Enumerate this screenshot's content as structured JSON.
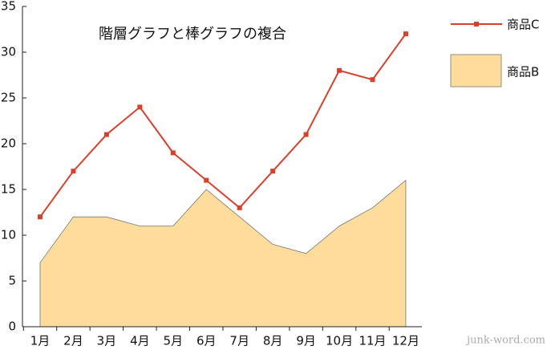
{
  "chart_data": {
    "type": "combo",
    "title": "階層グラフと棒グラフの複合",
    "categories": [
      "1月",
      "2月",
      "3月",
      "4月",
      "5月",
      "6月",
      "7月",
      "8月",
      "9月",
      "10月",
      "11月",
      "12月"
    ],
    "series": [
      {
        "name": "商品C",
        "type": "line",
        "color": "#d8402a",
        "values": [
          12,
          17,
          21,
          24,
          19,
          16,
          13,
          17,
          21,
          28,
          27,
          32
        ]
      },
      {
        "name": "商品B",
        "type": "area",
        "color": "#fedc9b",
        "values": [
          7,
          12,
          12,
          11,
          11,
          15,
          12,
          9,
          8,
          11,
          13,
          16
        ]
      }
    ],
    "ylim": [
      0,
      35
    ],
    "yticks": [
      0,
      5,
      10,
      15,
      20,
      25,
      30,
      35
    ],
    "watermark": "junk-word.com"
  }
}
